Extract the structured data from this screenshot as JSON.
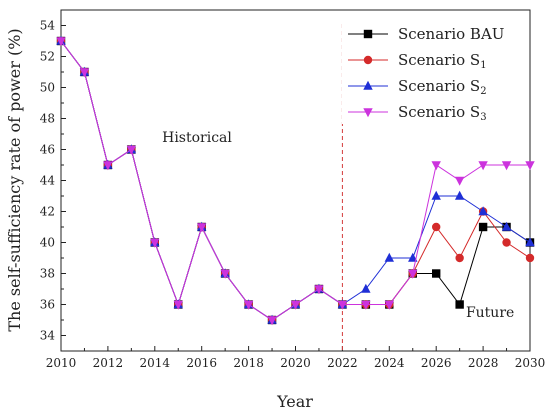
{
  "chart_data": {
    "type": "line",
    "xlabel": "Year",
    "ylabel": "The self-sufficiency rate of power (%)",
    "xlim": [
      2010,
      2030
    ],
    "ylim": [
      33,
      55
    ],
    "x_ticks": [
      2010,
      2012,
      2014,
      2016,
      2018,
      2020,
      2022,
      2024,
      2026,
      2028,
      2030
    ],
    "y_ticks": [
      34,
      36,
      38,
      40,
      42,
      44,
      46,
      48,
      50,
      52,
      54
    ],
    "grid": false,
    "legend_placement": "top-right",
    "divider_year": 2022,
    "annotations": [
      {
        "text": "Historical",
        "x": 2015.8,
        "y": 46.5
      },
      {
        "text": "Future",
        "x": 2028.3,
        "y": 35.2
      }
    ],
    "series": [
      {
        "name": "Scenario BAU",
        "color": "#000000",
        "marker": "square",
        "x": [
          2010,
          2011,
          2012,
          2013,
          2014,
          2015,
          2016,
          2017,
          2018,
          2019,
          2020,
          2021,
          2022,
          2023,
          2024,
          2025,
          2026,
          2027,
          2028,
          2029,
          2030
        ],
        "values": [
          53,
          51,
          45,
          46,
          40,
          36,
          41,
          38,
          36,
          35,
          36,
          37,
          36,
          36,
          36,
          38,
          38,
          36,
          41,
          41,
          40
        ]
      },
      {
        "name": "Scenario S",
        "name_subscript": "1",
        "color": "#d42a2a",
        "marker": "circle",
        "x": [
          2010,
          2011,
          2012,
          2013,
          2014,
          2015,
          2016,
          2017,
          2018,
          2019,
          2020,
          2021,
          2022,
          2023,
          2024,
          2025,
          2026,
          2027,
          2028,
          2029,
          2030
        ],
        "values": [
          53,
          51,
          45,
          46,
          40,
          36,
          41,
          38,
          36,
          35,
          36,
          37,
          36,
          36,
          36,
          38,
          41,
          39,
          42,
          40,
          39
        ]
      },
      {
        "name": "Scenario S",
        "name_subscript": "2",
        "color": "#1f2fd6",
        "marker": "triangle-up",
        "x": [
          2010,
          2011,
          2012,
          2013,
          2014,
          2015,
          2016,
          2017,
          2018,
          2019,
          2020,
          2021,
          2022,
          2023,
          2024,
          2025,
          2026,
          2027,
          2028,
          2029,
          2030
        ],
        "values": [
          53,
          51,
          45,
          46,
          40,
          36,
          41,
          38,
          36,
          35,
          36,
          37,
          36,
          37,
          39,
          39,
          43,
          43,
          42,
          41,
          40
        ]
      },
      {
        "name": "Scenario S",
        "name_subscript": "3",
        "color": "#cc33dd",
        "marker": "triangle-down",
        "x": [
          2010,
          2011,
          2012,
          2013,
          2014,
          2015,
          2016,
          2017,
          2018,
          2019,
          2020,
          2021,
          2022,
          2023,
          2024,
          2025,
          2026,
          2027,
          2028,
          2029,
          2030
        ],
        "values": [
          53,
          51,
          45,
          46,
          40,
          36,
          41,
          38,
          36,
          35,
          36,
          37,
          36,
          36,
          36,
          38,
          45,
          44,
          45,
          45,
          45
        ]
      }
    ]
  }
}
